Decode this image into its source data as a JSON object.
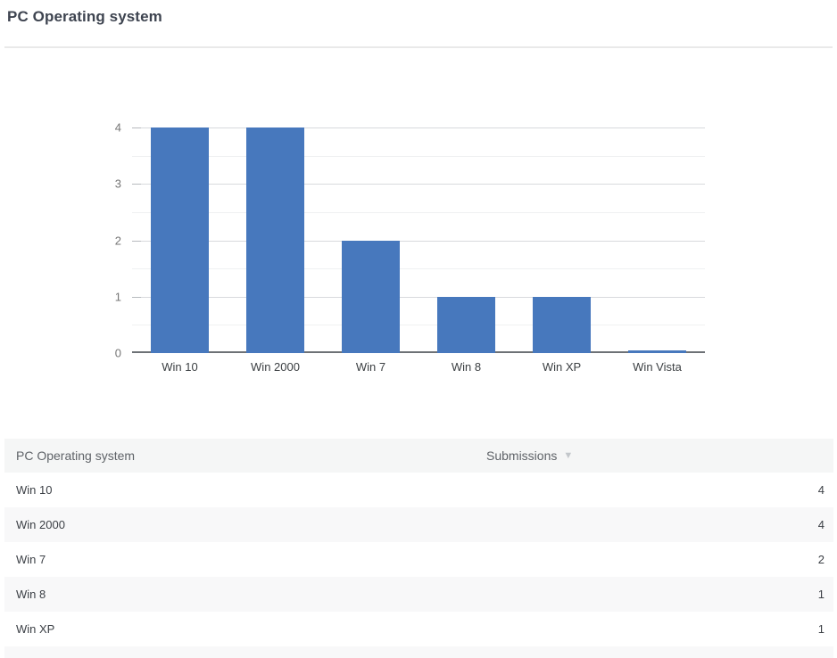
{
  "page": {
    "title": "PC Operating system"
  },
  "chart_data": {
    "type": "bar",
    "title": "PC Operating system",
    "categories": [
      "Win 10",
      "Win 2000",
      "Win 7",
      "Win 8",
      "Win XP",
      "Win Vista"
    ],
    "values": [
      4,
      4,
      2,
      1,
      1,
      0
    ],
    "xlabel": "",
    "ylabel": "",
    "ylim": [
      0,
      4
    ],
    "yticks": [
      0,
      1,
      2,
      3,
      4
    ],
    "minor_grid_step": 0.5,
    "grid": true,
    "legend": "none",
    "bar_color": "#4778bd"
  },
  "table": {
    "header": {
      "question_label": "PC Operating system",
      "submissions_label": "Submissions",
      "sort_glyph": "▼",
      "sort_direction": "desc"
    },
    "rows": [
      {
        "label": "Win 10",
        "value": "4"
      },
      {
        "label": "Win 2000",
        "value": "4"
      },
      {
        "label": "Win 7",
        "value": "2"
      },
      {
        "label": "Win 8",
        "value": "1"
      },
      {
        "label": "Win XP",
        "value": "1"
      }
    ],
    "partial_row_visible": true
  },
  "colors": {
    "bar": "#4778bd",
    "axis_baseline": "#6d7176",
    "grid_major": "#d8dadd",
    "grid_minor": "#f0f1f2",
    "header_bg": "#f5f6f6",
    "row_stripe_bg": "#f8f8f9",
    "title_text": "#3e4450",
    "axis_tick_text": "#757575",
    "category_text": "#3c4043"
  }
}
